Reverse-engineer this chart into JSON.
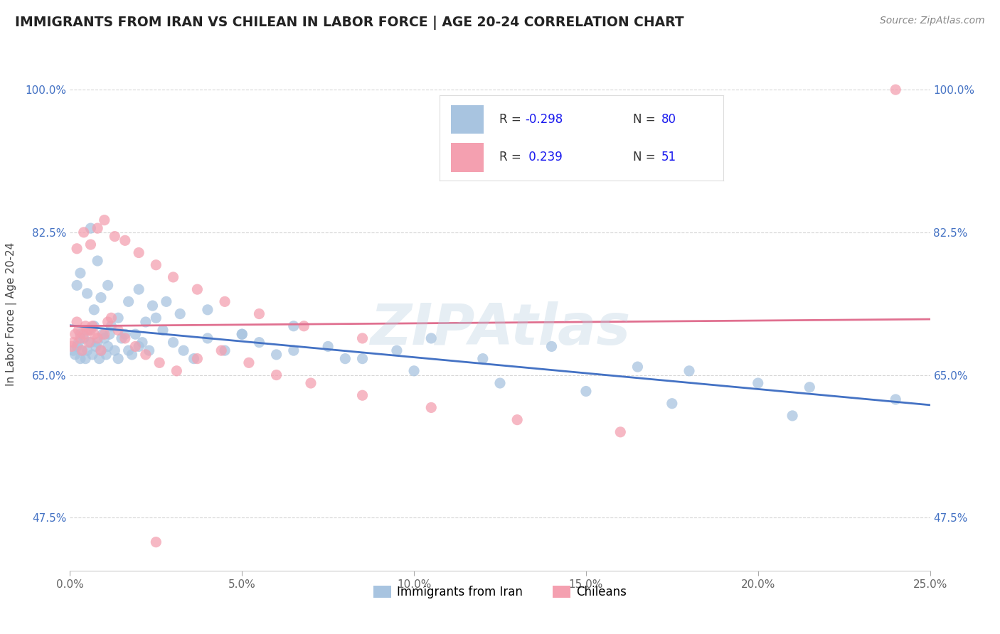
{
  "title": "IMMIGRANTS FROM IRAN VS CHILEAN IN LABOR FORCE | AGE 20-24 CORRELATION CHART",
  "source": "Source: ZipAtlas.com",
  "ylabel": "In Labor Force | Age 20-24",
  "xlim": [
    0.0,
    25.0
  ],
  "ylim": [
    41.0,
    104.0
  ],
  "xticks": [
    0.0,
    5.0,
    10.0,
    15.0,
    20.0,
    25.0
  ],
  "xticklabels": [
    "0.0%",
    "5.0%",
    "10.0%",
    "15.0%",
    "20.0%",
    "25.0%"
  ],
  "yticks": [
    47.5,
    65.0,
    82.5,
    100.0
  ],
  "yticklabels": [
    "47.5%",
    "65.0%",
    "82.5%",
    "100.0%"
  ],
  "blue_color": "#a8c4e0",
  "pink_color": "#f4a0b0",
  "blue_line_color": "#4472c4",
  "pink_line_color": "#e07090",
  "legend_label1": "Immigrants from Iran",
  "legend_label2": "Chileans",
  "watermark": "ZIPAtlas",
  "blue_scatter_x": [
    0.1,
    0.15,
    0.2,
    0.25,
    0.3,
    0.3,
    0.35,
    0.4,
    0.45,
    0.5,
    0.55,
    0.6,
    0.65,
    0.7,
    0.75,
    0.8,
    0.85,
    0.9,
    0.95,
    1.0,
    1.05,
    1.1,
    1.15,
    1.2,
    1.3,
    1.4,
    1.5,
    1.6,
    1.7,
    1.8,
    1.9,
    2.0,
    2.1,
    2.2,
    2.3,
    2.5,
    2.7,
    3.0,
    3.3,
    3.6,
    4.0,
    4.5,
    5.0,
    5.5,
    6.0,
    6.5,
    7.5,
    8.5,
    9.5,
    10.5,
    12.0,
    14.0,
    16.5,
    18.0,
    20.0,
    21.5,
    0.2,
    0.3,
    0.5,
    0.7,
    0.9,
    1.1,
    1.4,
    1.7,
    2.0,
    2.4,
    2.8,
    3.2,
    4.0,
    5.0,
    6.5,
    8.0,
    10.0,
    12.5,
    15.0,
    17.5,
    21.0,
    24.0,
    0.6,
    0.8
  ],
  "blue_scatter_y": [
    68.0,
    67.5,
    68.5,
    69.0,
    67.0,
    70.0,
    68.0,
    69.5,
    67.0,
    68.0,
    70.5,
    69.0,
    67.5,
    71.0,
    68.5,
    69.0,
    67.0,
    68.0,
    70.0,
    69.5,
    67.5,
    68.5,
    70.0,
    71.0,
    68.0,
    67.0,
    69.5,
    70.0,
    68.0,
    67.5,
    70.0,
    68.5,
    69.0,
    71.5,
    68.0,
    72.0,
    70.5,
    69.0,
    68.0,
    67.0,
    69.5,
    68.0,
    70.0,
    69.0,
    67.5,
    71.0,
    68.5,
    67.0,
    68.0,
    69.5,
    67.0,
    68.5,
    66.0,
    65.5,
    64.0,
    63.5,
    76.0,
    77.5,
    75.0,
    73.0,
    74.5,
    76.0,
    72.0,
    74.0,
    75.5,
    73.5,
    74.0,
    72.5,
    73.0,
    70.0,
    68.0,
    67.0,
    65.5,
    64.0,
    63.0,
    61.5,
    60.0,
    62.0,
    83.0,
    79.0
  ],
  "pink_scatter_x": [
    0.05,
    0.1,
    0.15,
    0.2,
    0.25,
    0.3,
    0.35,
    0.4,
    0.45,
    0.5,
    0.55,
    0.6,
    0.65,
    0.7,
    0.8,
    0.9,
    1.0,
    1.1,
    1.2,
    1.4,
    1.6,
    1.9,
    2.2,
    2.6,
    3.1,
    3.7,
    4.4,
    5.2,
    6.0,
    7.0,
    8.5,
    10.5,
    13.0,
    16.0,
    0.2,
    0.4,
    0.6,
    0.8,
    1.0,
    1.3,
    1.6,
    2.0,
    2.5,
    3.0,
    3.7,
    4.5,
    5.5,
    6.8,
    8.5,
    24.0,
    2.5
  ],
  "pink_scatter_y": [
    68.5,
    69.0,
    70.0,
    71.5,
    70.5,
    69.5,
    68.0,
    70.0,
    71.0,
    70.5,
    69.0,
    70.5,
    71.0,
    70.0,
    69.5,
    68.0,
    70.0,
    71.5,
    72.0,
    70.5,
    69.5,
    68.5,
    67.5,
    66.5,
    65.5,
    67.0,
    68.0,
    66.5,
    65.0,
    64.0,
    62.5,
    61.0,
    59.5,
    58.0,
    80.5,
    82.5,
    81.0,
    83.0,
    84.0,
    82.0,
    81.5,
    80.0,
    78.5,
    77.0,
    75.5,
    74.0,
    72.5,
    71.0,
    69.5,
    100.0,
    44.5
  ]
}
